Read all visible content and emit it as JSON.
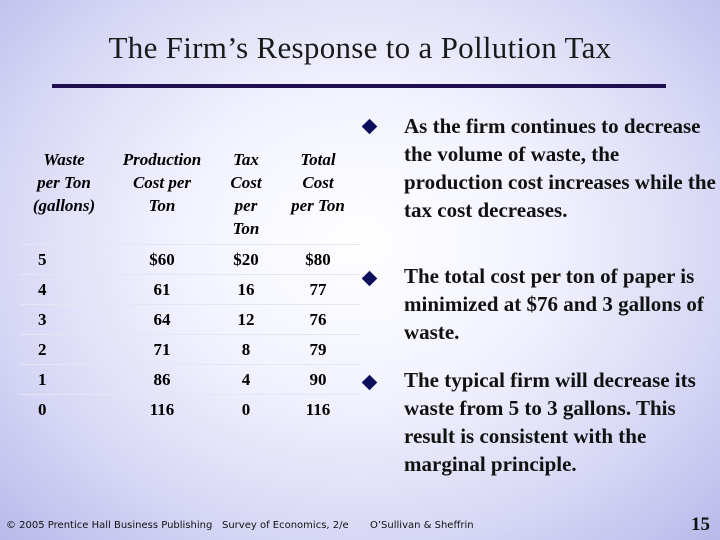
{
  "slide": {
    "title": "The Firm’s Response to a Pollution Tax",
    "table": {
      "headers": [
        [
          "Waste",
          "per Ton",
          "(gallons)"
        ],
        [
          "Production",
          "Cost per",
          "Ton"
        ],
        [
          "Tax",
          "Cost",
          "per",
          "Ton"
        ],
        [
          "Total",
          "Cost",
          "per Ton"
        ]
      ],
      "rows": [
        [
          "5",
          "$60",
          "$20",
          "$80"
        ],
        [
          "4",
          "61",
          "16",
          "77"
        ],
        [
          "3",
          "64",
          "12",
          "76"
        ],
        [
          "2",
          "71",
          "8",
          "79"
        ],
        [
          "1",
          "86",
          "4",
          "90"
        ],
        [
          "0",
          "116",
          "0",
          "116"
        ]
      ]
    },
    "bullets": [
      "As the firm continues to decrease the volume of waste, the production cost increases while the tax cost decreases.",
      "The total cost per ton of paper is minimized at $76 and 3 gallons of waste.",
      "The typical firm will decrease its waste from 5 to 3 gallons. This result is consistent with the marginal principle."
    ],
    "footer": {
      "copyright": "© 2005 Prentice Hall Business Publishing",
      "book": "Survey of Economics, 2/e",
      "authors": "O’Sullivan & Sheffrin",
      "page_number": "15"
    },
    "colors": {
      "title_rule": "#1f0f4f",
      "bullet": "#0d0d5c"
    }
  }
}
